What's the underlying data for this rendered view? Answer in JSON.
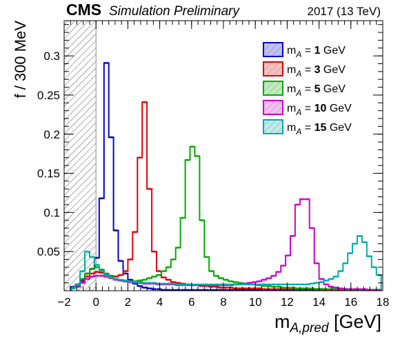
{
  "header": {
    "experiment": "CMS",
    "status": "Simulation Preliminary",
    "energy": "2017 (13 TeV)"
  },
  "chart_data": {
    "type": "histogram",
    "ylabel": "f / 300 MeV",
    "xlabel_main": "m",
    "xlabel_sub": "A,pred",
    "xlabel_unit": " [GeV]",
    "xlim": [
      -2,
      18
    ],
    "ylim": [
      0,
      0.345
    ],
    "bin_width": 0.3,
    "x_start": -1.6,
    "x_ticks": [
      -2,
      0,
      2,
      4,
      6,
      8,
      10,
      12,
      14,
      16,
      18
    ],
    "x_tick_labels": [
      "−2",
      "0",
      "2",
      "4",
      "6",
      "8",
      "10",
      "12",
      "14",
      "16",
      "18"
    ],
    "y_ticks": [
      0.05,
      0.1,
      0.15,
      0.2,
      0.25,
      0.3
    ],
    "y_tick_labels": [
      "0.05",
      "0.1",
      "0.15",
      "0.2",
      "0.25",
      "0.3"
    ],
    "hatched_region": [
      -2,
      0
    ],
    "legend_position": "top-right",
    "series": [
      {
        "name": "1",
        "legend_var": "m",
        "legend_sub": "A",
        "legend_eq": " = ",
        "legend_unit": " GeV",
        "color": "#0000cc",
        "values": [
          0.005,
          0.008,
          0.013,
          0.022,
          0.028,
          0.042,
          0.118,
          0.291,
          0.196,
          0.077,
          0.038,
          0.022,
          0.014,
          0.009,
          0.006,
          0.004,
          0.003,
          0.002,
          0.002,
          0.001,
          0.001,
          0.001,
          0.001,
          0.001,
          0.001,
          0.001,
          0.001,
          0.001,
          0.001,
          0.001,
          0.001,
          0.001,
          0.001,
          0.001,
          0.001,
          0.001,
          0.001,
          0.001,
          0.001,
          0.001,
          0.001,
          0.001,
          0.001,
          0.001,
          0.001,
          0.001,
          0.001,
          0.001,
          0.001,
          0.001,
          0.001,
          0.001,
          0.001,
          0.001,
          0.001,
          0.001,
          0.001,
          0.001,
          0.001,
          0.001,
          0.001,
          0.001,
          0.001,
          0.001,
          0.001
        ]
      },
      {
        "name": "3",
        "legend_var": "m",
        "legend_sub": "A",
        "legend_eq": " = ",
        "legend_unit": " GeV",
        "color": "#dd0000",
        "values": [
          0.004,
          0.007,
          0.012,
          0.018,
          0.022,
          0.024,
          0.023,
          0.021,
          0.019,
          0.018,
          0.02,
          0.025,
          0.04,
          0.075,
          0.17,
          0.241,
          0.13,
          0.05,
          0.025,
          0.017,
          0.014,
          0.011,
          0.01,
          0.009,
          0.008,
          0.007,
          0.007,
          0.006,
          0.006,
          0.005,
          0.005,
          0.004,
          0.004,
          0.004,
          0.003,
          0.003,
          0.003,
          0.003,
          0.003,
          0.003,
          0.002,
          0.002,
          0.002,
          0.002,
          0.002,
          0.002,
          0.002,
          0.002,
          0.002,
          0.002,
          0.002,
          0.002,
          0.002,
          0.001,
          0.001,
          0.001,
          0.001,
          0.001,
          0.001,
          0.001,
          0.001,
          0.001,
          0.001,
          0.001,
          0.001
        ]
      },
      {
        "name": "5",
        "legend_var": "m",
        "legend_sub": "A",
        "legend_eq": " = ",
        "legend_unit": " GeV",
        "color": "#00aa00",
        "values": [
          0.004,
          0.008,
          0.015,
          0.022,
          0.028,
          0.03,
          0.027,
          0.022,
          0.018,
          0.015,
          0.013,
          0.012,
          0.012,
          0.012,
          0.013,
          0.014,
          0.016,
          0.018,
          0.02,
          0.025,
          0.03,
          0.04,
          0.055,
          0.093,
          0.167,
          0.184,
          0.172,
          0.09,
          0.043,
          0.025,
          0.019,
          0.016,
          0.014,
          0.012,
          0.011,
          0.01,
          0.009,
          0.008,
          0.008,
          0.007,
          0.006,
          0.006,
          0.005,
          0.005,
          0.004,
          0.004,
          0.004,
          0.003,
          0.003,
          0.003,
          0.003,
          0.002,
          0.002,
          0.002,
          0.002,
          0.002,
          0.002,
          0.002,
          0.001,
          0.001,
          0.001,
          0.001,
          0.001,
          0.001,
          0.001
        ]
      },
      {
        "name": "10",
        "legend_var": "m",
        "legend_sub": "A",
        "legend_eq": " = ",
        "legend_unit": " GeV",
        "color": "#cc00cc",
        "values": [
          0.003,
          0.005,
          0.01,
          0.015,
          0.018,
          0.019,
          0.019,
          0.018,
          0.016,
          0.014,
          0.013,
          0.012,
          0.011,
          0.01,
          0.01,
          0.009,
          0.009,
          0.009,
          0.008,
          0.008,
          0.008,
          0.008,
          0.007,
          0.007,
          0.007,
          0.007,
          0.007,
          0.007,
          0.007,
          0.007,
          0.007,
          0.007,
          0.007,
          0.007,
          0.008,
          0.008,
          0.009,
          0.01,
          0.011,
          0.012,
          0.014,
          0.016,
          0.019,
          0.024,
          0.032,
          0.045,
          0.07,
          0.11,
          0.117,
          0.117,
          0.08,
          0.035,
          0.015,
          0.008,
          0.005,
          0.004,
          0.003,
          0.002,
          0.002,
          0.002,
          0.002,
          0.002,
          0.001,
          0.001,
          0.001
        ]
      },
      {
        "name": "15",
        "legend_var": "m",
        "legend_sub": "A",
        "legend_eq": " = ",
        "legend_unit": " GeV",
        "color": "#00aaaa",
        "values": [
          0.003,
          0.008,
          0.025,
          0.05,
          0.043,
          0.033,
          0.025,
          0.02,
          0.017,
          0.015,
          0.014,
          0.013,
          0.012,
          0.011,
          0.011,
          0.01,
          0.01,
          0.01,
          0.009,
          0.009,
          0.009,
          0.009,
          0.008,
          0.008,
          0.008,
          0.008,
          0.008,
          0.008,
          0.008,
          0.008,
          0.008,
          0.008,
          0.008,
          0.008,
          0.008,
          0.008,
          0.008,
          0.008,
          0.008,
          0.008,
          0.008,
          0.008,
          0.008,
          0.008,
          0.008,
          0.008,
          0.008,
          0.008,
          0.008,
          0.008,
          0.009,
          0.01,
          0.011,
          0.013,
          0.015,
          0.018,
          0.025,
          0.035,
          0.048,
          0.06,
          0.07,
          0.062,
          0.044,
          0.03,
          0.02
        ]
      }
    ]
  }
}
